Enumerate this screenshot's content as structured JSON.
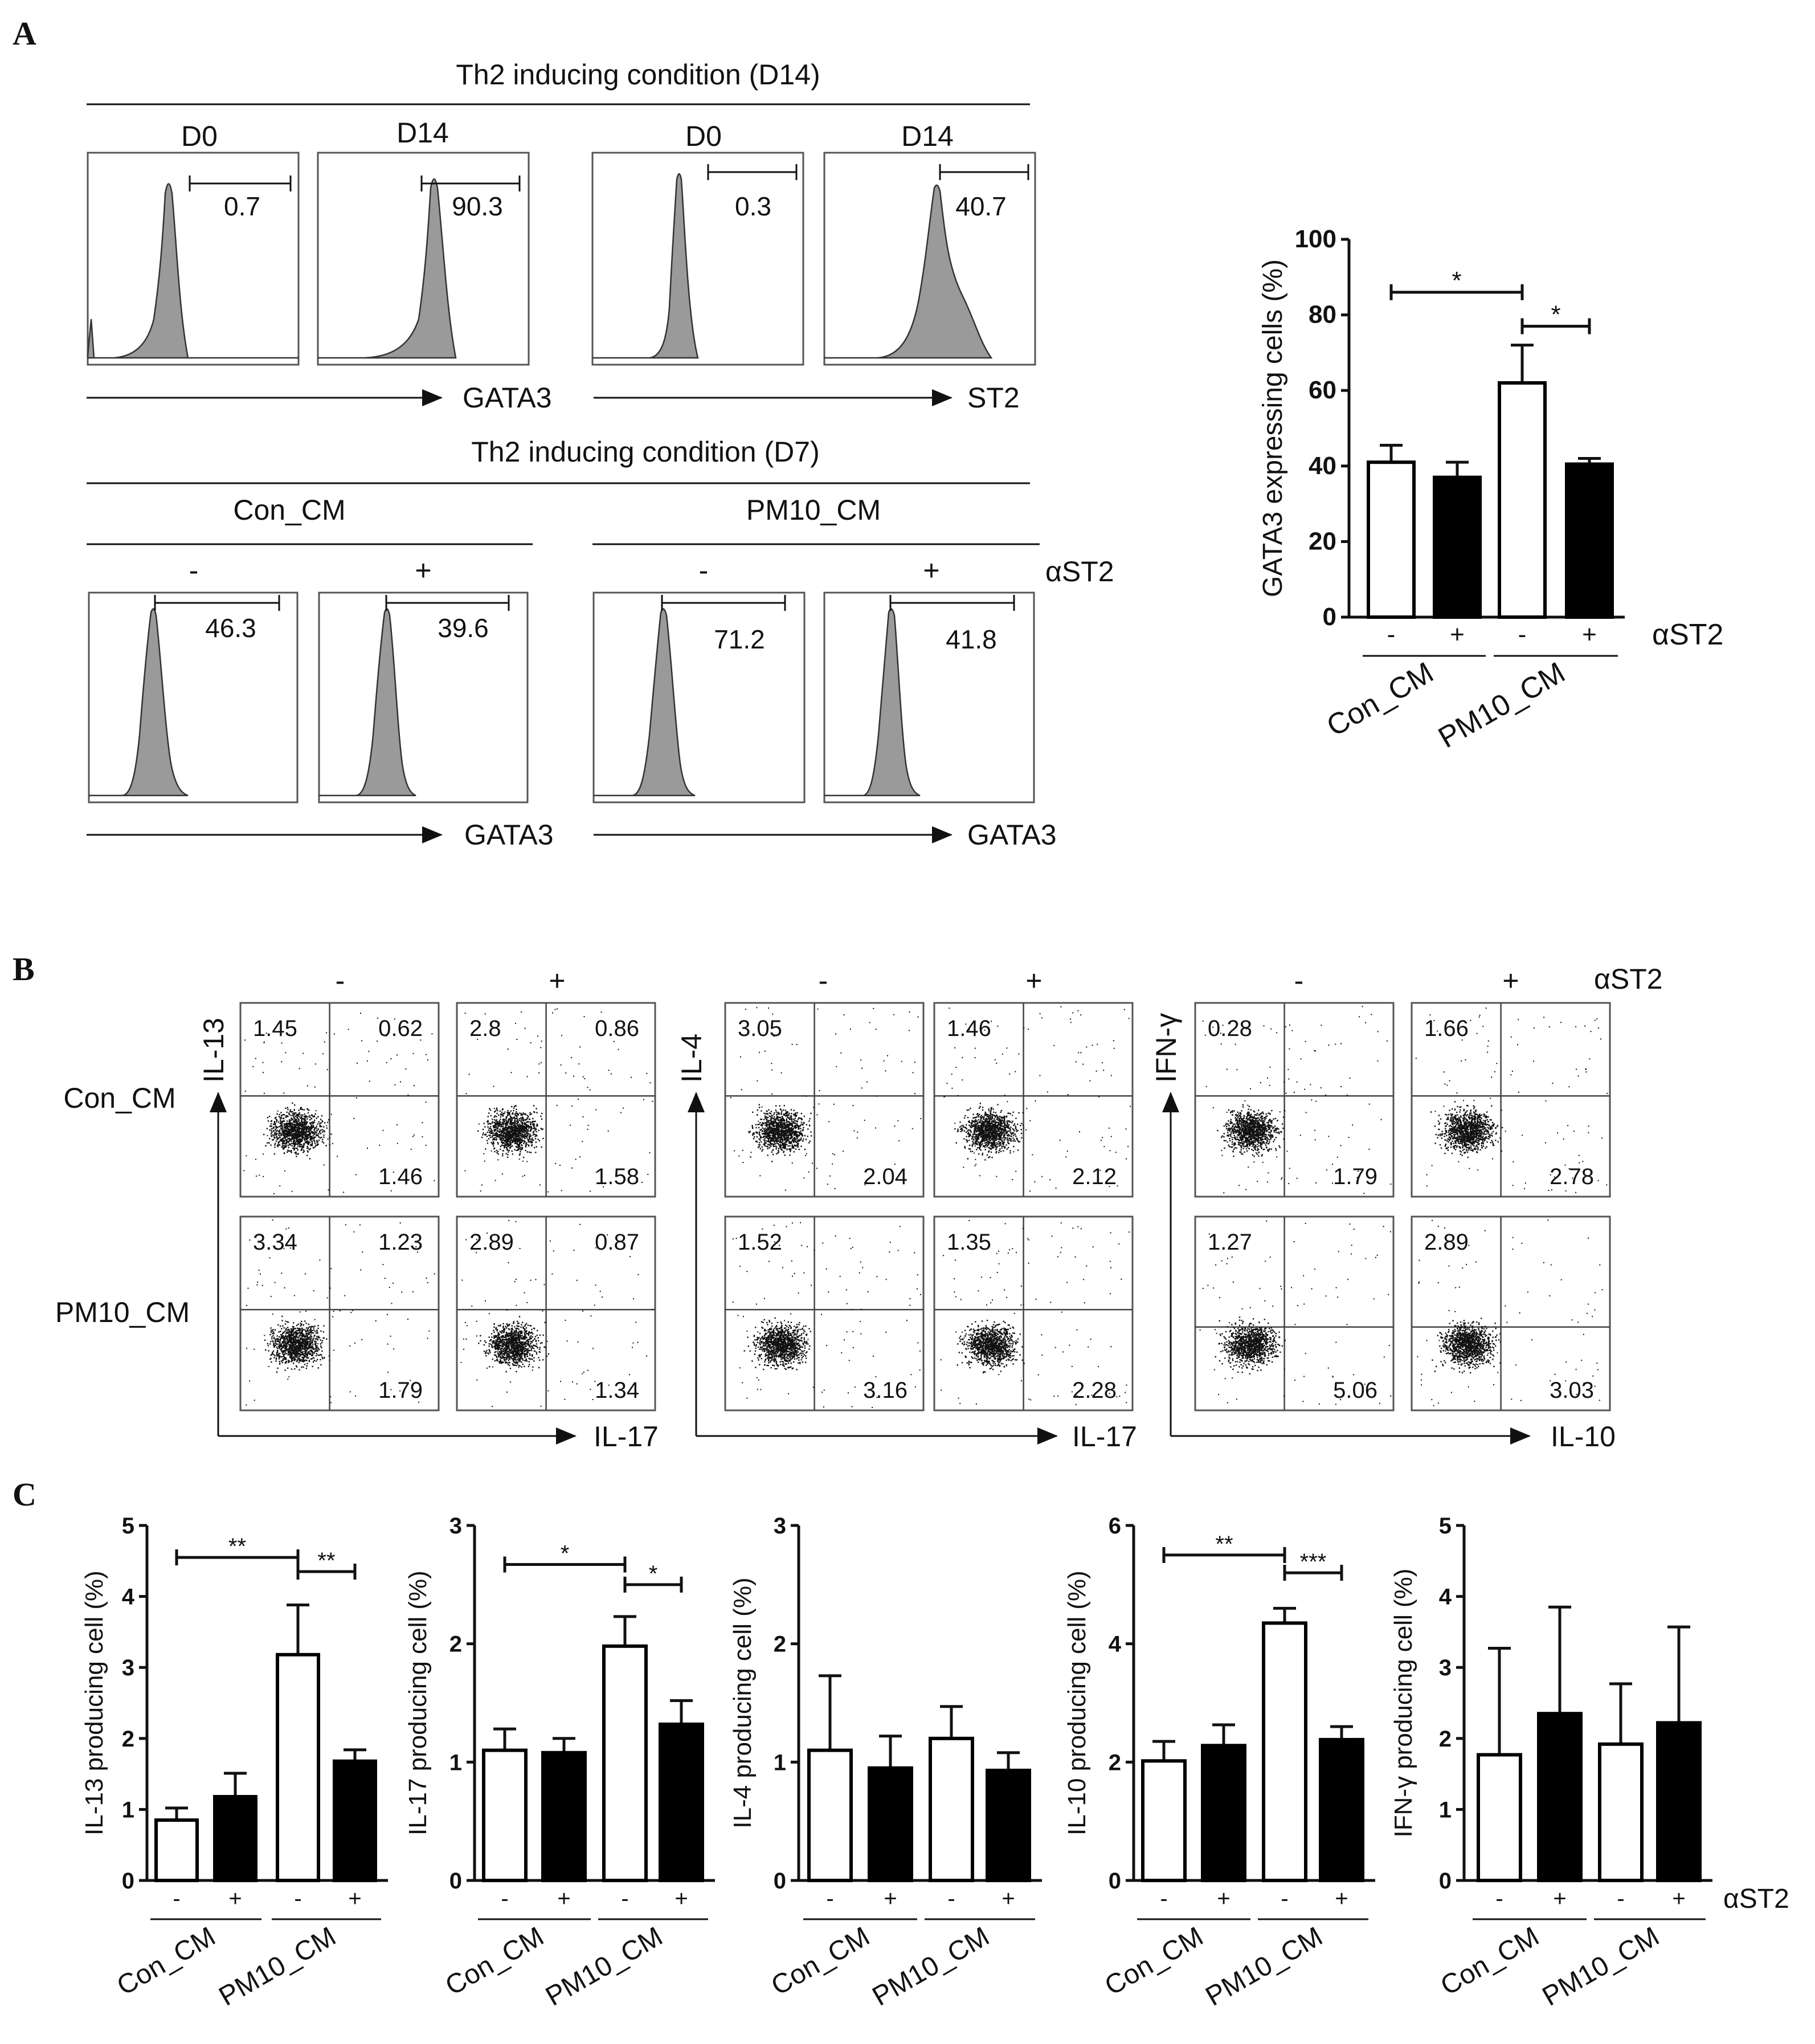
{
  "panel_labels": {
    "a": "A",
    "b": "B",
    "c": "C"
  },
  "panel_a": {
    "top_header": "Th2 inducing condition (D14)",
    "bottom_header": "Th2 inducing condition (D7)",
    "day_labels": [
      "D0",
      "D14",
      "D0",
      "D14"
    ],
    "top_values": [
      "0.7",
      "90.3",
      "0.3",
      "40.7"
    ],
    "top_axis_labels": [
      "GATA3",
      "ST2"
    ],
    "group_labels": [
      "Con_CM",
      "PM10_CM"
    ],
    "treat_labels": [
      "-",
      "+",
      "-",
      "+"
    ],
    "treat_name": "αST2",
    "bottom_values": [
      "46.3",
      "39.6",
      "71.2",
      "41.8"
    ],
    "bottom_axis_labels": [
      "GATA3",
      "GATA3"
    ]
  },
  "panel_b": {
    "treat_labels": [
      "-",
      "+",
      "-",
      "+",
      "-",
      "+"
    ],
    "treat_name": "αST2",
    "row_labels": [
      "Con_CM",
      "PM10_CM"
    ],
    "y_labels": [
      "IL-13",
      "IL-4",
      "IFN-γ"
    ],
    "x_labels": [
      "IL-17",
      "IL-17",
      "IL-10"
    ],
    "plots": [
      [
        "1.45",
        "0.62",
        "1.46"
      ],
      [
        "2.8",
        "0.86",
        "1.58"
      ],
      [
        "3.05",
        "2.04"
      ],
      [
        "1.46",
        "2.12"
      ],
      [
        "0.28",
        "1.79"
      ],
      [
        "1.66",
        "2.78"
      ],
      [
        "3.34",
        "1.23",
        "1.79"
      ],
      [
        "2.89",
        "0.87",
        "1.34"
      ],
      [
        "1.52",
        "3.16"
      ],
      [
        "1.35",
        "2.28"
      ],
      [
        "1.27",
        "5.06"
      ],
      [
        "2.89",
        "3.03"
      ]
    ]
  },
  "chart_data": [
    {
      "type": "bar",
      "ylabel": "GATA3 expressing cells (%)",
      "ylim": [
        0,
        100
      ],
      "ticks": [
        "0",
        "20",
        "40",
        "60",
        "80",
        "100"
      ],
      "categories": [
        "-",
        "+",
        "-",
        "+"
      ],
      "groups": [
        "Con_CM",
        "PM10_CM"
      ],
      "treatment": "αST2",
      "values": [
        41,
        37,
        62,
        40.5
      ],
      "errors": [
        4.5,
        4,
        10,
        1.5
      ],
      "fills": [
        "white",
        "black",
        "white",
        "black"
      ],
      "sig": [
        {
          "from": 0,
          "to": 2,
          "label": "*",
          "y": 86
        },
        {
          "from": 2,
          "to": 3,
          "label": "*",
          "y": 77
        }
      ]
    },
    {
      "type": "bar",
      "ylabel": "IL-13 producing cell (%)",
      "ylim": [
        0,
        5
      ],
      "ticks": [
        "0",
        "1",
        "2",
        "3",
        "4",
        "5"
      ],
      "categories": [
        "-",
        "+",
        "-",
        "+"
      ],
      "groups": [
        "Con_CM",
        "PM10_CM"
      ],
      "values": [
        0.85,
        1.18,
        3.18,
        1.68
      ],
      "errors": [
        0.17,
        0.33,
        0.7,
        0.16
      ],
      "fills": [
        "white",
        "black",
        "white",
        "black"
      ],
      "sig": [
        {
          "from": 0,
          "to": 2,
          "label": "**",
          "y": 4.55
        },
        {
          "from": 2,
          "to": 3,
          "label": "**",
          "y": 4.35
        }
      ]
    },
    {
      "type": "bar",
      "ylabel": "IL-17 producing cell (%)",
      "ylim": [
        0,
        3
      ],
      "ticks": [
        "0",
        "1",
        "2",
        "3"
      ],
      "categories": [
        "-",
        "+",
        "-",
        "+"
      ],
      "groups": [
        "Con_CM",
        "PM10_CM"
      ],
      "values": [
        1.1,
        1.08,
        1.98,
        1.32
      ],
      "errors": [
        0.18,
        0.12,
        0.25,
        0.2
      ],
      "fills": [
        "white",
        "black",
        "white",
        "black"
      ],
      "sig": [
        {
          "from": 0,
          "to": 2,
          "label": "*",
          "y": 2.67
        },
        {
          "from": 2,
          "to": 3,
          "label": "*",
          "y": 2.5
        }
      ]
    },
    {
      "type": "bar",
      "ylabel": "IL-4 producing cell (%)",
      "ylim": [
        0,
        3
      ],
      "ticks": [
        "0",
        "1",
        "2",
        "3"
      ],
      "categories": [
        "-",
        "+",
        "-",
        "+"
      ],
      "groups": [
        "Con_CM",
        "PM10_CM"
      ],
      "values": [
        1.1,
        0.95,
        1.2,
        0.93
      ],
      "errors": [
        0.63,
        0.27,
        0.27,
        0.15
      ],
      "fills": [
        "white",
        "black",
        "white",
        "black"
      ],
      "sig": []
    },
    {
      "type": "bar",
      "ylabel": "IL-10 producing cell (%)",
      "ylim": [
        0,
        6
      ],
      "ticks": [
        "0",
        "2",
        "4",
        "6"
      ],
      "categories": [
        "-",
        "+",
        "-",
        "+"
      ],
      "groups": [
        "Con_CM",
        "PM10_CM"
      ],
      "values": [
        2.02,
        2.28,
        4.35,
        2.38
      ],
      "errors": [
        0.33,
        0.35,
        0.25,
        0.22
      ],
      "fills": [
        "white",
        "black",
        "white",
        "black"
      ],
      "sig": [
        {
          "from": 0,
          "to": 2,
          "label": "**",
          "y": 5.5
        },
        {
          "from": 2,
          "to": 3,
          "label": "***",
          "y": 5.2
        }
      ]
    },
    {
      "type": "bar",
      "ylabel": "IFN-γ producing cell (%)",
      "ylim": [
        0,
        5
      ],
      "ticks": [
        "0",
        "1",
        "2",
        "3",
        "4",
        "5"
      ],
      "categories": [
        "-",
        "+",
        "-",
        "+"
      ],
      "groups": [
        "Con_CM",
        "PM10_CM"
      ],
      "treatment": "αST2",
      "values": [
        1.77,
        2.35,
        1.92,
        2.22
      ],
      "errors": [
        1.5,
        1.5,
        0.85,
        1.35
      ],
      "fills": [
        "white",
        "black",
        "white",
        "black"
      ],
      "sig": []
    }
  ]
}
